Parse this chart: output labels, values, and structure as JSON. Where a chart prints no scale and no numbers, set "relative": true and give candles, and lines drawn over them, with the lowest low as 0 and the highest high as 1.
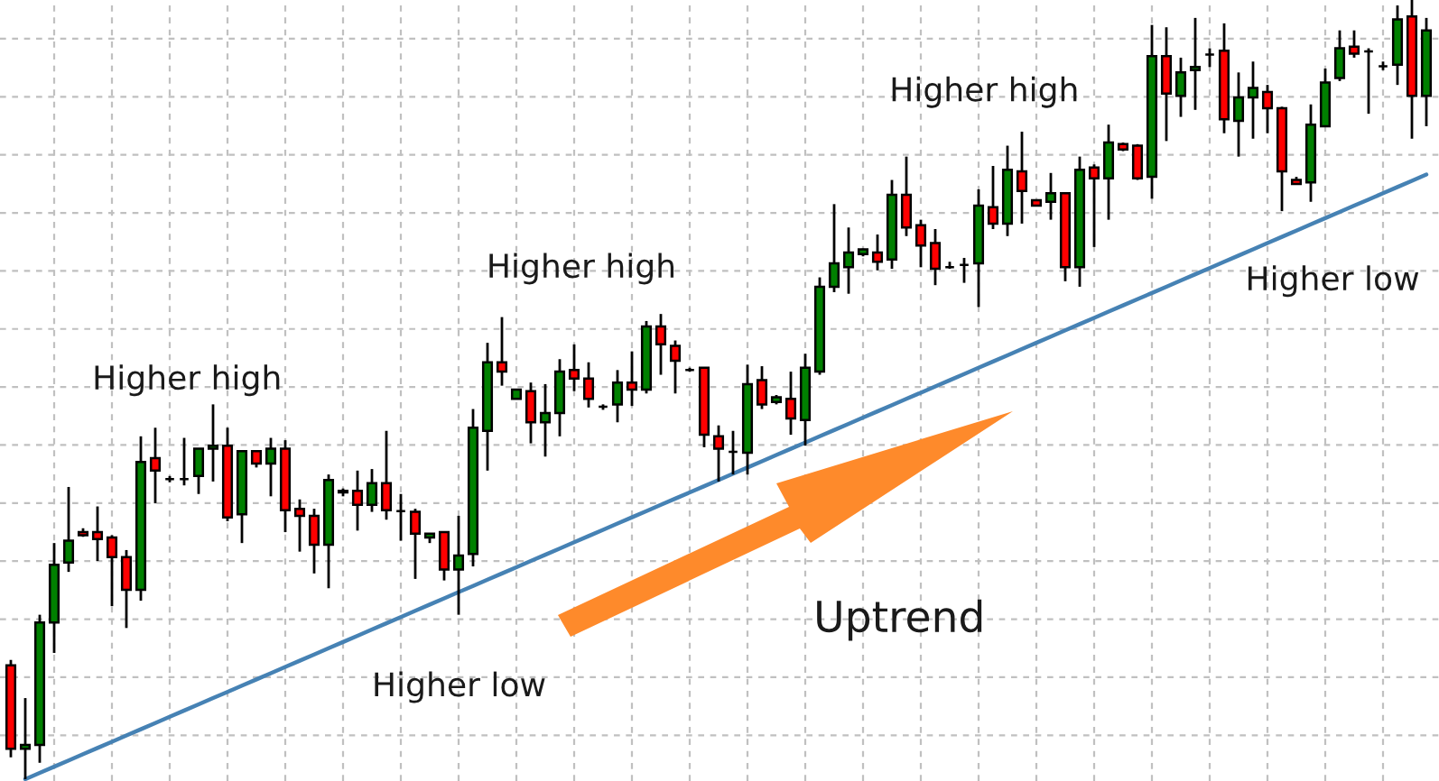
{
  "chart_data": {
    "type": "candlestick",
    "relative": true,
    "grid": true,
    "categories": [
      null,
      null,
      null,
      null,
      null,
      null,
      null,
      null,
      null,
      null,
      null,
      null,
      null,
      null,
      null,
      null,
      null,
      null,
      null,
      null,
      null,
      null,
      null,
      null,
      null,
      null,
      null,
      null,
      null,
      null,
      null,
      null,
      null,
      null,
      null,
      null,
      null,
      null,
      null,
      null,
      null,
      null,
      null,
      null,
      null,
      null,
      null,
      null,
      null,
      null,
      null,
      null,
      null,
      null,
      null,
      null,
      null,
      null,
      null,
      null,
      null,
      null,
      null,
      null,
      null,
      null,
      null,
      null,
      null,
      null,
      null,
      null,
      null,
      null,
      null,
      null,
      null,
      null,
      null,
      null,
      null,
      null,
      null,
      null,
      null,
      null,
      null,
      null,
      null,
      null,
      null,
      null,
      null,
      null,
      null,
      null,
      null,
      null,
      null
    ],
    "ohlc": [
      [
        0.146,
        0.153,
        0.028,
        0.039
      ],
      [
        0.039,
        0.104,
        0,
        0.044
      ],
      [
        0.044,
        0.211,
        0.021,
        0.201
      ],
      [
        0.201,
        0.303,
        0.162,
        0.275
      ],
      [
        0.278,
        0.375,
        0.266,
        0.306
      ],
      [
        0.317,
        0.322,
        0.311,
        0.313
      ],
      [
        0.317,
        0.35,
        0.28,
        0.308
      ],
      [
        0.31,
        0.313,
        0.222,
        0.285
      ],
      [
        0.285,
        0.294,
        0.194,
        0.243
      ],
      [
        0.243,
        0.44,
        0.229,
        0.407
      ],
      [
        0.412,
        0.451,
        0.354,
        0.396
      ],
      [
        0.385,
        0.389,
        0.381,
        0.385
      ],
      [
        0.385,
        0.438,
        0.377,
        0.385
      ],
      [
        0.389,
        0.424,
        0.366,
        0.424
      ],
      [
        0.424,
        0.481,
        0.382,
        0.428
      ],
      [
        0.428,
        0.451,
        0.331,
        0.336
      ],
      [
        0.34,
        0.421,
        0.303,
        0.421
      ],
      [
        0.421,
        0.421,
        0.4,
        0.405
      ],
      [
        0.405,
        0.438,
        0.363,
        0.424
      ],
      [
        0.424,
        0.435,
        0.317,
        0.345
      ],
      [
        0.347,
        0.359,
        0.292,
        0.338
      ],
      [
        0.338,
        0.347,
        0.264,
        0.301
      ],
      [
        0.301,
        0.391,
        0.245,
        0.384
      ],
      [
        0.37,
        0.373,
        0.363,
        0.368
      ],
      [
        0.37,
        0.396,
        0.319,
        0.352
      ],
      [
        0.352,
        0.398,
        0.343,
        0.38
      ],
      [
        0.38,
        0.447,
        0.333,
        0.345
      ],
      [
        0.344,
        0.366,
        0.306,
        0.344
      ],
      [
        0.343,
        0.347,
        0.257,
        0.315
      ],
      [
        0.31,
        0.315,
        0.303,
        0.315
      ],
      [
        0.317,
        0.317,
        0.255,
        0.269
      ],
      [
        0.269,
        0.338,
        0.211,
        0.287
      ],
      [
        0.289,
        0.475,
        0.273,
        0.451
      ],
      [
        0.447,
        0.56,
        0.396,
        0.535
      ],
      [
        0.535,
        0.593,
        0.505,
        0.523
      ],
      [
        0.488,
        0.5,
        0.488,
        0.5
      ],
      [
        0.498,
        0.509,
        0.431,
        0.458
      ],
      [
        0.458,
        0.507,
        0.414,
        0.47
      ],
      [
        0.47,
        0.539,
        0.44,
        0.523
      ],
      [
        0.525,
        0.558,
        0.498,
        0.514
      ],
      [
        0.514,
        0.535,
        0.477,
        0.488
      ],
      [
        0.478,
        0.481,
        0.474,
        0.478
      ],
      [
        0.481,
        0.525,
        0.458,
        0.509
      ],
      [
        0.509,
        0.549,
        0.479,
        0.5
      ],
      [
        0.5,
        0.588,
        0.495,
        0.581
      ],
      [
        0.581,
        0.597,
        0.519,
        0.558
      ],
      [
        0.556,
        0.563,
        0.495,
        0.537
      ],
      [
        0.525,
        0.528,
        0.523,
        0.525
      ],
      [
        0.528,
        0.528,
        0.426,
        0.442
      ],
      [
        0.44,
        0.454,
        0.382,
        0.424
      ],
      [
        0.42,
        0.447,
        0.391,
        0.42
      ],
      [
        0.419,
        0.532,
        0.391,
        0.507
      ],
      [
        0.512,
        0.53,
        0.475,
        0.481
      ],
      [
        0.484,
        0.493,
        0.481,
        0.49
      ],
      [
        0.488,
        0.523,
        0.442,
        0.463
      ],
      [
        0.461,
        0.546,
        0.428,
        0.528
      ],
      [
        0.523,
        0.644,
        0.519,
        0.632
      ],
      [
        0.632,
        0.738,
        0.625,
        0.662
      ],
      [
        0.657,
        0.708,
        0.623,
        0.676
      ],
      [
        0.674,
        0.681,
        0.671,
        0.68
      ],
      [
        0.676,
        0.699,
        0.653,
        0.664
      ],
      [
        0.667,
        0.769,
        0.655,
        0.75
      ],
      [
        0.75,
        0.799,
        0.697,
        0.708
      ],
      [
        0.711,
        0.718,
        0.657,
        0.685
      ],
      [
        0.688,
        0.706,
        0.634,
        0.655
      ],
      [
        0.657,
        0.664,
        0.655,
        0.657
      ],
      [
        0.66,
        0.669,
        0.637,
        0.66
      ],
      [
        0.662,
        0.757,
        0.606,
        0.736
      ],
      [
        0.734,
        0.787,
        0.706,
        0.713
      ],
      [
        0.713,
        0.813,
        0.697,
        0.782
      ],
      [
        0.78,
        0.831,
        0.713,
        0.755
      ],
      [
        0.743,
        0.743,
        0.736,
        0.736
      ],
      [
        0.741,
        0.778,
        0.718,
        0.752
      ],
      [
        0.752,
        0.752,
        0.639,
        0.657
      ],
      [
        0.657,
        0.799,
        0.632,
        0.782
      ],
      [
        0.785,
        0.789,
        0.683,
        0.771
      ],
      [
        0.771,
        0.84,
        0.718,
        0.817
      ],
      [
        0.815,
        0.817,
        0.806,
        0.808
      ],
      [
        0.813,
        0.815,
        0.769,
        0.771
      ],
      [
        0.773,
        0.968,
        0.745,
        0.928
      ],
      [
        0.928,
        0.965,
        0.819,
        0.88
      ],
      [
        0.877,
        0.926,
        0.85,
        0.907
      ],
      [
        0.91,
        0.977,
        0.859,
        0.914
      ],
      [
        0.93,
        0.938,
        0.914,
        0.93
      ],
      [
        0.935,
        0.97,
        0.829,
        0.847
      ],
      [
        0.845,
        0.907,
        0.799,
        0.875
      ],
      [
        0.875,
        0.921,
        0.822,
        0.887
      ],
      [
        0.882,
        0.891,
        0.829,
        0.861
      ],
      [
        0.861,
        0.863,
        0.729,
        0.78
      ],
      [
        0.769,
        0.773,
        0.763,
        0.764
      ],
      [
        0.766,
        0.866,
        0.741,
        0.84
      ],
      [
        0.838,
        0.912,
        0.838,
        0.894
      ],
      [
        0.9,
        0.961,
        0.896,
        0.938
      ],
      [
        0.94,
        0.961,
        0.926,
        0.931
      ],
      [
        0.934,
        0.938,
        0.854,
        0.934
      ],
      [
        0.915,
        0.921,
        0.91,
        0.915
      ],
      [
        0.917,
        0.993,
        0.891,
        0.975
      ],
      [
        0.979,
        1,
        0.822,
        0.877
      ],
      [
        0.877,
        0.977,
        0.838,
        0.961
      ]
    ],
    "colors": [
      "#ff0000",
      "#008000",
      "#008000",
      "#008000",
      "#008000",
      "#ff0000",
      "#ff0000",
      "#ff0000",
      "#ff0000",
      "#008000",
      "#ff0000",
      "#000000",
      "#000000",
      "#008000",
      "#008000",
      "#ff0000",
      "#008000",
      "#ff0000",
      "#008000",
      "#ff0000",
      "#ff0000",
      "#ff0000",
      "#008000",
      "#ff0000",
      "#ff0000",
      "#008000",
      "#ff0000",
      "#000000",
      "#ff0000",
      "#008000",
      "#ff0000",
      "#008000",
      "#008000",
      "#008000",
      "#ff0000",
      "#008000",
      "#ff0000",
      "#008000",
      "#008000",
      "#ff0000",
      "#ff0000",
      "#000000",
      "#008000",
      "#ff0000",
      "#008000",
      "#ff0000",
      "#ff0000",
      "#000000",
      "#ff0000",
      "#ff0000",
      "#000000",
      "#008000",
      "#ff0000",
      "#008000",
      "#ff0000",
      "#008000",
      "#008000",
      "#008000",
      "#008000",
      "#008000",
      "#ff0000",
      "#008000",
      "#ff0000",
      "#ff0000",
      "#ff0000",
      "#000000",
      "#000000",
      "#008000",
      "#ff0000",
      "#008000",
      "#ff0000",
      "#ff0000",
      "#008000",
      "#ff0000",
      "#008000",
      "#ff0000",
      "#008000",
      "#ff0000",
      "#ff0000",
      "#008000",
      "#ff0000",
      "#008000",
      "#008000",
      "#000000",
      "#ff0000",
      "#008000",
      "#008000",
      "#ff0000",
      "#ff0000",
      "#ff0000",
      "#008000",
      "#008000",
      "#008000",
      "#ff0000",
      "#000000",
      "#000000",
      "#008000",
      "#ff0000",
      "#008000"
    ],
    "series": [
      {
        "type": "line",
        "color": "#4682b4",
        "values": [
          null,
          0,
          0.008,
          0.016,
          0.024,
          0.032,
          0.04,
          0.048,
          0.056,
          0.064,
          0.072,
          0.08,
          0.088,
          0.096,
          0.104,
          0.112,
          0.12,
          0.128,
          0.136,
          0.144,
          0.152,
          0.16,
          0.168,
          0.176,
          0.184,
          0.192,
          0.2,
          0.208,
          0.216,
          0.224,
          0.232,
          0.24,
          0.248,
          0.256,
          0.264,
          0.272,
          0.28,
          0.288,
          0.296,
          0.304,
          0.312,
          0.32,
          0.328,
          0.336,
          0.344,
          0.352,
          0.36,
          0.368,
          0.376,
          0.384,
          0.392,
          0.4,
          0.408,
          0.416,
          0.424,
          0.432,
          0.44,
          0.448,
          0.456,
          0.464,
          0.472,
          0.48,
          0.488,
          0.496,
          0.504,
          0.512,
          0.52,
          0.528,
          0.536,
          0.544,
          0.552,
          0.56,
          0.568,
          0.576,
          0.584,
          0.592,
          0.6,
          0.608,
          0.616,
          0.624,
          0.632,
          0.64,
          0.648,
          0.656,
          0.664,
          0.672,
          0.68,
          0.688,
          0.696,
          0.704,
          0.712,
          0.72,
          0.728,
          0.736,
          0.744,
          0.752,
          0.76,
          0.768,
          0.776
        ]
      }
    ],
    "annotations": [
      "Higher high",
      "Higher high",
      "Higher high",
      "Higher low",
      "Higher low",
      "Uptrend"
    ]
  }
}
